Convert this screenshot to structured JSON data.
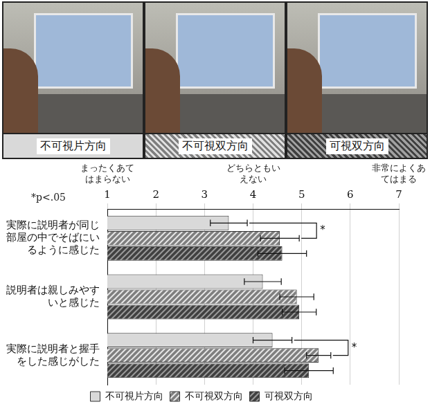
{
  "photo_panels": {
    "labels": [
      "不可視片方向",
      "不可視双方向",
      "可視双方向"
    ]
  },
  "chart_data": {
    "type": "bar",
    "orientation": "horizontal",
    "categories": [
      "実際に説明者が同じ部屋の中でそばにいるように感じた",
      "説明者は親しみやすいと感じた",
      "実際に説明者と握手をした感じがした"
    ],
    "series": [
      {
        "name": "不可視片方向",
        "color": "#d9d9d9",
        "values": [
          3.5,
          4.2,
          4.4
        ],
        "errors": [
          0.38,
          0.38,
          0.4
        ]
      },
      {
        "name": "不可視双方向",
        "color": "#7f7f7f",
        "values": [
          4.55,
          4.9,
          5.35
        ],
        "errors": [
          0.4,
          0.35,
          0.25
        ]
      },
      {
        "name": "可視双方向",
        "color": "#404040",
        "values": [
          4.6,
          4.95,
          5.15
        ],
        "errors": [
          0.5,
          0.35,
          0.5
        ]
      }
    ],
    "xlim": [
      1,
      7
    ],
    "xticks": [
      1,
      2,
      3,
      4,
      5,
      6,
      7
    ],
    "scale_labels": [
      {
        "x": 1,
        "text": "まったくあてはまらない"
      },
      {
        "x": 4,
        "text": "どちらともいえない"
      },
      {
        "x": 7,
        "text": "非常によくあてはまる"
      }
    ],
    "significance": [
      {
        "category": 0,
        "between": [
          "不可視片方向",
          "不可視双方向"
        ],
        "label": "*"
      },
      {
        "category": 2,
        "between": [
          "不可視片方向",
          "不可視双方向"
        ],
        "label": "*"
      }
    ],
    "note": "*p<.05",
    "grid": true,
    "legend": "bottom"
  }
}
